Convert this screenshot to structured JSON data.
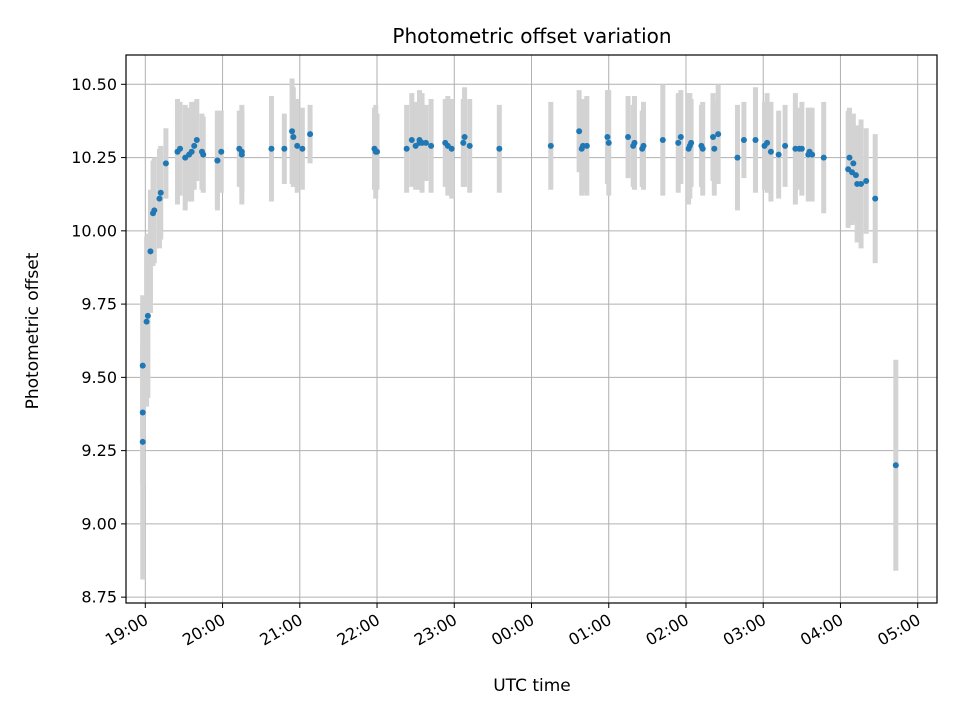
{
  "chart_data": {
    "type": "scatter",
    "title": "Photometric offset variation",
    "xlabel": "UTC time",
    "ylabel": "Photometric offset",
    "xlim": [
      "18:45",
      "05:15"
    ],
    "ylim": [
      8.73,
      10.6
    ],
    "grid": true,
    "x_ticks": [
      "19:00",
      "20:00",
      "21:00",
      "22:00",
      "23:00",
      "00:00",
      "01:00",
      "02:00",
      "03:00",
      "04:00",
      "05:00"
    ],
    "y_ticks": [
      "8.75",
      "9.00",
      "9.25",
      "9.50",
      "9.75",
      "10.00",
      "10.25",
      "10.50"
    ],
    "colors": {
      "points": "#1f77b4",
      "errorbars": "#d3d3d3",
      "grid": "#b0b0b0"
    },
    "series": [
      {
        "x": [
          "18:58",
          "18:58",
          "18:58",
          "19:01",
          "19:02",
          "19:04",
          "19:06",
          "19:07",
          "19:11",
          "19:12",
          "19:16",
          "19:25",
          "19:27",
          "19:31",
          "19:34",
          "19:36",
          "19:38",
          "19:40",
          "19:44",
          "19:45",
          "19:56",
          "19:56",
          "19:59",
          "20:13",
          "20:15",
          "20:15",
          "20:38",
          "20:48",
          "20:54",
          "20:55",
          "20:58",
          "21:02",
          "21:08",
          "21:58",
          "21:59",
          "22:00",
          "22:23",
          "22:27",
          "22:30",
          "22:33",
          "22:33",
          "22:35",
          "22:38",
          "22:42",
          "22:53",
          "22:55",
          "22:58",
          "23:07",
          "23:08",
          "23:12",
          "23:35",
          "00:15",
          "00:37",
          "00:39",
          "00:40",
          "00:43",
          "00:59",
          "01:00",
          "01:15",
          "01:19",
          "01:20",
          "01:26",
          "01:27",
          "01:42",
          "01:54",
          "01:56",
          "02:02",
          "02:03",
          "02:04",
          "02:12",
          "02:13",
          "02:21",
          "02:22",
          "02:25",
          "02:40",
          "02:45",
          "02:54",
          "03:01",
          "03:03",
          "03:06",
          "03:12",
          "03:17",
          "03:25",
          "03:28",
          "03:30",
          "03:35",
          "03:36",
          "03:38",
          "03:47",
          "04:06",
          "04:07",
          "04:09",
          "04:10",
          "04:12",
          "04:13",
          "04:16",
          "04:20",
          "04:27",
          "04:43"
        ],
        "y": [
          9.38,
          9.28,
          9.54,
          9.69,
          9.71,
          9.93,
          10.06,
          10.07,
          10.11,
          10.13,
          10.23,
          10.27,
          10.28,
          10.25,
          10.26,
          10.27,
          10.29,
          10.31,
          10.27,
          10.26,
          10.24,
          10.24,
          10.27,
          10.28,
          10.27,
          10.26,
          10.28,
          10.28,
          10.34,
          10.32,
          10.29,
          10.28,
          10.33,
          10.28,
          10.27,
          10.27,
          10.28,
          10.31,
          10.29,
          10.3,
          10.31,
          10.3,
          10.3,
          10.29,
          10.3,
          10.29,
          10.28,
          10.3,
          10.32,
          10.29,
          10.28,
          10.29,
          10.34,
          10.28,
          10.29,
          10.29,
          10.32,
          10.3,
          10.32,
          10.29,
          10.3,
          10.28,
          10.29,
          10.31,
          10.3,
          10.32,
          10.28,
          10.29,
          10.3,
          10.29,
          10.28,
          10.32,
          10.28,
          10.33,
          10.25,
          10.31,
          10.31,
          10.29,
          10.3,
          10.27,
          10.26,
          10.29,
          10.28,
          10.28,
          10.28,
          10.26,
          10.27,
          10.26,
          10.25,
          10.21,
          10.25,
          10.2,
          10.23,
          10.19,
          10.16,
          10.16,
          10.17,
          10.11,
          9.2
        ],
        "err": [
          0.24,
          0.47,
          0.24,
          0.29,
          0.28,
          0.21,
          0.18,
          0.18,
          0.17,
          0.16,
          0.12,
          0.18,
          0.16,
          0.18,
          0.16,
          0.17,
          0.15,
          0.14,
          0.13,
          0.13,
          0.17,
          0.16,
          0.14,
          0.13,
          0.14,
          0.17,
          0.18,
          0.12,
          0.18,
          0.17,
          0.16,
          0.14,
          0.1,
          0.14,
          0.16,
          0.13,
          0.15,
          0.16,
          0.15,
          0.13,
          0.17,
          0.17,
          0.13,
          0.16,
          0.15,
          0.17,
          0.17,
          0.15,
          0.17,
          0.16,
          0.15,
          0.15,
          0.14,
          0.16,
          0.16,
          0.17,
          0.16,
          0.18,
          0.14,
          0.14,
          0.16,
          0.13,
          0.15,
          0.19,
          0.17,
          0.16,
          0.19,
          0.18,
          0.15,
          0.14,
          0.16,
          0.15,
          0.16,
          0.17,
          0.18,
          0.13,
          0.18,
          0.15,
          0.17,
          0.17,
          0.15,
          0.14,
          0.19,
          0.14,
          0.16,
          0.16,
          0.15,
          0.16,
          0.19,
          0.2,
          0.17,
          0.18,
          0.17,
          0.16,
          0.2,
          0.22,
          0.18,
          0.22,
          0.36
        ]
      }
    ]
  }
}
